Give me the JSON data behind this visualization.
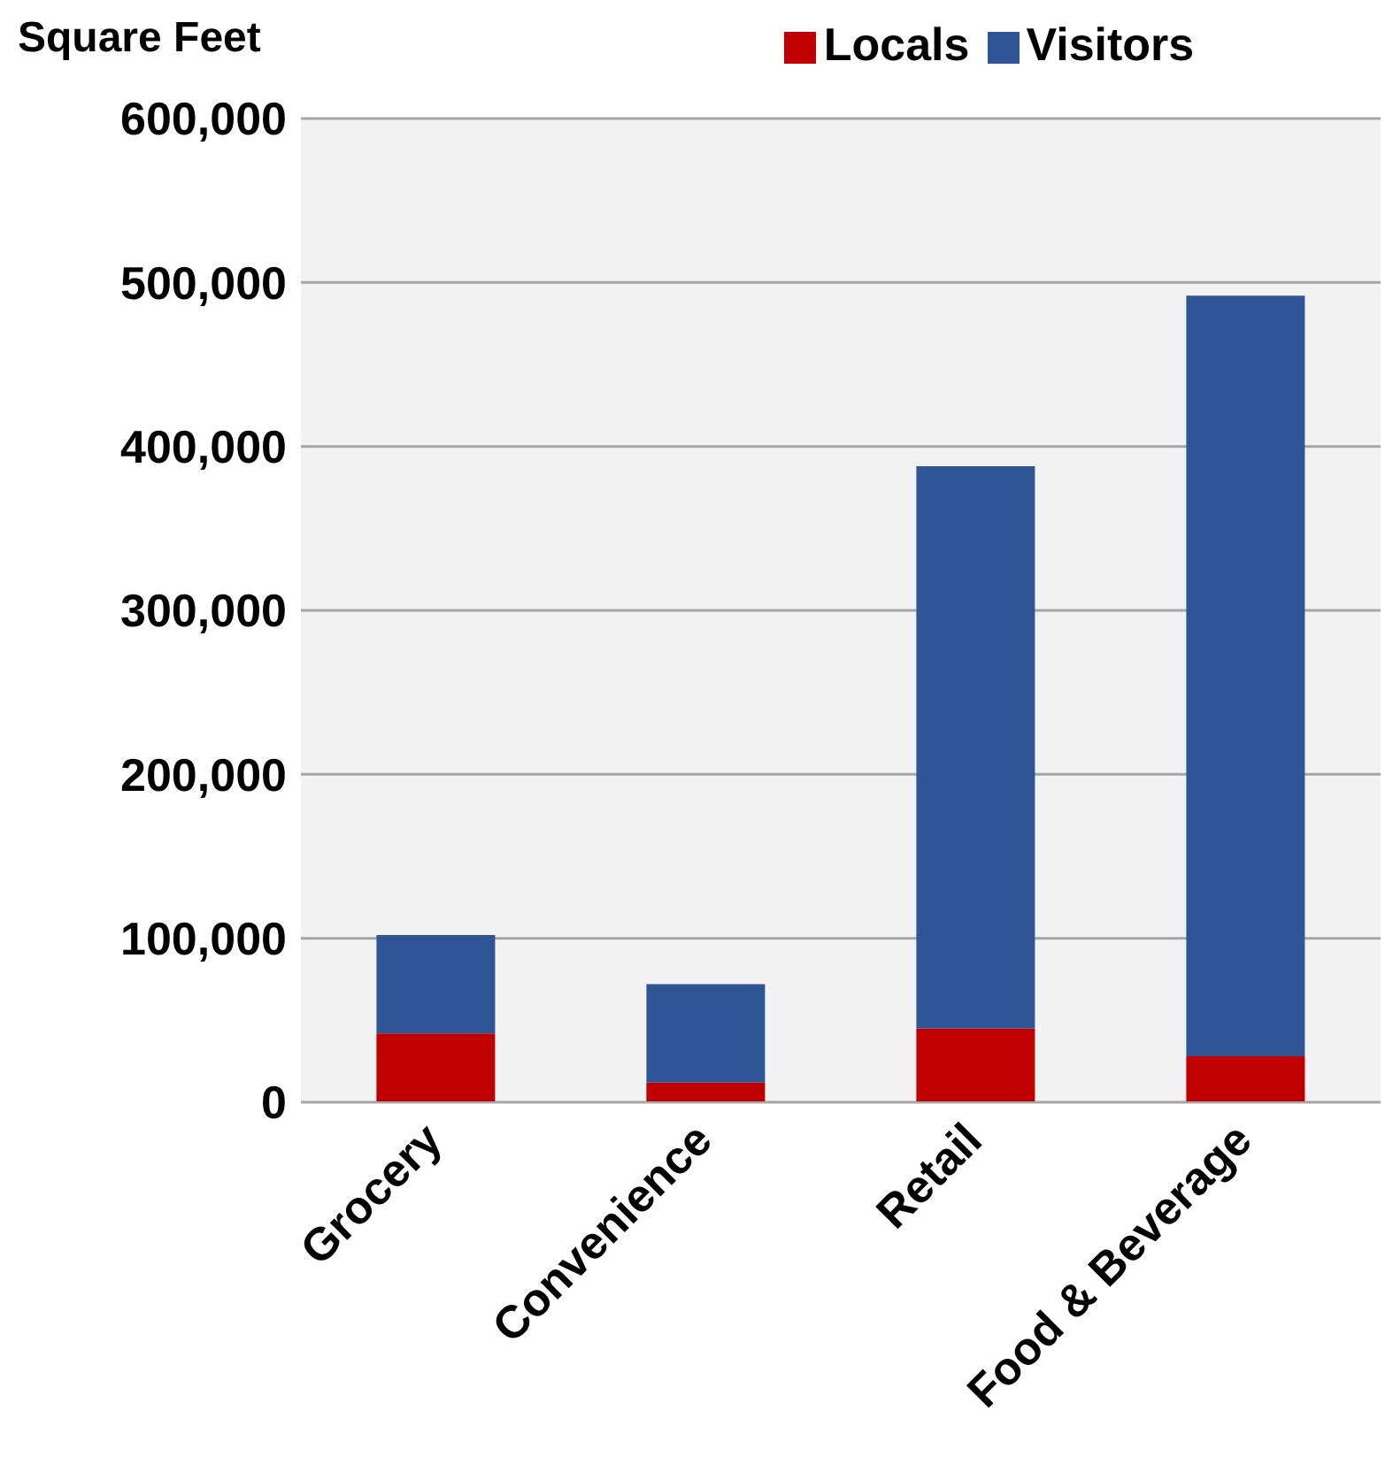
{
  "chart_data": {
    "type": "bar",
    "title": "Square Feet",
    "categories": [
      "Grocery",
      "Convenience",
      "Retail",
      "Food & Beverage"
    ],
    "stacked": true,
    "series": [
      {
        "name": "Locals",
        "color": "#c00000",
        "values": [
          42000,
          12000,
          45000,
          28000
        ]
      },
      {
        "name": "Visitors",
        "color": "#2f5597",
        "values": [
          60000,
          60000,
          343000,
          464000
        ]
      }
    ],
    "ylim": [
      0,
      600000
    ],
    "yticks": [
      {
        "value": 0,
        "label": "0"
      },
      {
        "value": 100000,
        "label": "100,000"
      },
      {
        "value": 200000,
        "label": "200,000"
      },
      {
        "value": 300000,
        "label": "300,000"
      },
      {
        "value": 400000,
        "label": "400,000"
      },
      {
        "value": 500000,
        "label": "500,000"
      },
      {
        "value": 600000,
        "label": "600,000"
      }
    ],
    "grid": "y",
    "legend": "top"
  }
}
